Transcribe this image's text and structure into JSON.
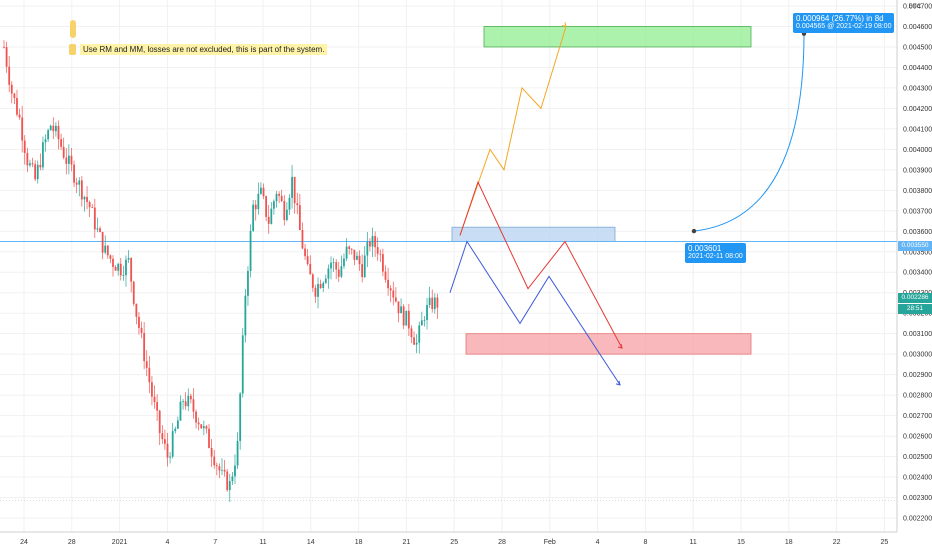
{
  "currency": "BTC",
  "note": "Use RM and MM, losses are not excluded, this is part of the system.",
  "measure": {
    "line1": "0.000964 (26.77%) in 8d",
    "line2": "0.004565 @ 2021-02-19  08:00"
  },
  "start_point": {
    "price": "0.003601",
    "date": "2021-02-11  08:00"
  },
  "price_tags": {
    "current": "0.002286",
    "countdown": "28:51",
    "level": "0.003550"
  },
  "colors": {
    "up": "#26a69a",
    "down": "#ef5350",
    "hline": "#64b5f6",
    "target": "#90ee90",
    "stop": "#f7a1a6",
    "zone": "#b7d3f0"
  },
  "chart_data": {
    "type": "candlestick",
    "title": "",
    "ylim": [
      0.0022,
      0.0047
    ],
    "y_ticks": [
      "0.002200",
      "0.002300",
      "0.002400",
      "0.002500",
      "0.002600",
      "0.002700",
      "0.002800",
      "0.002900",
      "0.003000",
      "0.003100",
      "0.003200",
      "0.003300",
      "0.003400",
      "0.003500",
      "0.003600",
      "0.003700",
      "0.003800",
      "0.003900",
      "0.004000",
      "0.004100",
      "0.004200",
      "0.004300",
      "0.004400",
      "0.004500",
      "0.004600",
      "0.004700"
    ],
    "x_ticks": [
      "24",
      "28",
      "2021",
      "4",
      "7",
      "11",
      "14",
      "18",
      "21",
      "25",
      "28",
      "Feb",
      "4",
      "8",
      "11",
      "15",
      "18",
      "22",
      "25"
    ],
    "horizontal_line": 0.00355,
    "current_price": 0.002286,
    "close_path": [
      0.0045,
      0.00428,
      0.00415,
      0.00395,
      0.00385,
      0.004,
      0.00412,
      0.00405,
      0.00395,
      0.00388,
      0.0038,
      0.00372,
      0.0036,
      0.0035,
      0.00345,
      0.00342,
      0.00345,
      0.0032,
      0.003,
      0.0028,
      0.00262,
      0.0025,
      0.00262,
      0.00278,
      0.00275,
      0.00268,
      0.0026,
      0.0025,
      0.0024,
      0.00236,
      0.00255,
      0.0033,
      0.00372,
      0.00378,
      0.00365,
      0.0038,
      0.0037,
      0.00385,
      0.0036,
      0.0034,
      0.00332,
      0.00338,
      0.00345,
      0.0034,
      0.0035,
      0.00348,
      0.00342,
      0.00355,
      0.00352,
      0.0034,
      0.0033,
      0.0032,
      0.00315,
      0.00305,
      0.0032,
      0.00325
    ],
    "zones": [
      {
        "name": "target",
        "top": 0.0046,
        "bottom": 0.0045
      },
      {
        "name": "entry",
        "top": 0.00362,
        "bottom": 0.00355
      },
      {
        "name": "stop",
        "top": 0.0031,
        "bottom": 0.003
      }
    ],
    "projections": [
      {
        "color": "#f5a623",
        "points": [
          [
            0.00358
          ],
          [
            0.004
          ],
          [
            0.0039
          ],
          [
            0.0043
          ],
          [
            0.0042
          ],
          [
            0.0046
          ]
        ]
      },
      {
        "color": "#e53935",
        "points": [
          [
            0.00358
          ],
          [
            0.00384
          ],
          [
            0.00332
          ],
          [
            0.00355
          ],
          [
            0.00303
          ]
        ]
      },
      {
        "color": "#3f5bd8",
        "points": [
          [
            0.0033
          ],
          [
            0.00355
          ],
          [
            0.00315
          ],
          [
            0.00338
          ],
          [
            0.00285
          ]
        ]
      }
    ],
    "measure_start": 0.003601,
    "measure_end": 0.004565
  }
}
